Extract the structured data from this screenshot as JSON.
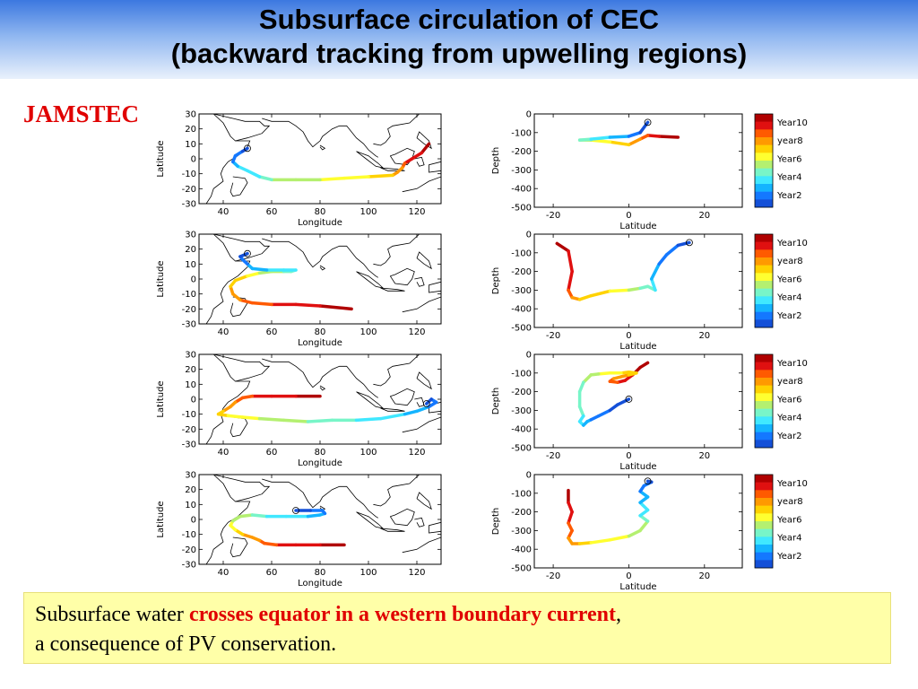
{
  "title": {
    "line1": "Subsurface circulation of CEC",
    "line2": "(backward tracking from upwelling regions)"
  },
  "org": "JAMSTEC",
  "caption": {
    "part1": "Subsurface water ",
    "highlight": "crosses equator in a western boundary current",
    "part2": ",",
    "line2": "a consequence of PV conservation."
  },
  "colorbar": {
    "labels": [
      "Year10",
      "year8",
      "Year6",
      "Year4",
      "Year2"
    ],
    "colors": [
      "#b00000",
      "#e01010",
      "#ff5a00",
      "#ff9a00",
      "#ffd200",
      "#ffff30",
      "#b4f070",
      "#78f5c8",
      "#40e8ff",
      "#14b4ff",
      "#1478ff",
      "#1450d8"
    ]
  },
  "chart_data": [
    {
      "type": "line",
      "panel": "map",
      "row": 1,
      "xlabel": "Longitude",
      "ylabel": "Latitude",
      "xlim": [
        30,
        130
      ],
      "ylim": [
        -30,
        30
      ],
      "xticks": [
        40,
        60,
        80,
        100,
        120
      ],
      "yticks": [
        30,
        20,
        10,
        0,
        -10,
        -20,
        -30
      ],
      "x": [
        125,
        122,
        118,
        115,
        114,
        112,
        110,
        100,
        90,
        80,
        70,
        60,
        55,
        50,
        46,
        44,
        45,
        48,
        50
      ],
      "y": [
        10,
        4,
        0,
        -3,
        -6,
        -9,
        -11,
        -12,
        -13,
        -14,
        -14,
        -14,
        -12,
        -8,
        -5,
        -2,
        2,
        5,
        7
      ]
    },
    {
      "type": "line",
      "panel": "section",
      "row": 1,
      "xlabel": "Latitude",
      "ylabel": "Depth",
      "xlim": [
        -25,
        30
      ],
      "ylim": [
        -500,
        0
      ],
      "xticks": [
        -20,
        0,
        20
      ],
      "yticks": [
        0,
        -100,
        -200,
        -300,
        -400,
        -500
      ],
      "x": [
        13,
        8,
        5,
        3,
        0,
        -5,
        -10,
        -13,
        -10,
        -5,
        0,
        3,
        5
      ],
      "y": [
        -125,
        -120,
        -115,
        -135,
        -165,
        -150,
        -140,
        -140,
        -135,
        -125,
        -120,
        -100,
        -45
      ]
    },
    {
      "type": "line",
      "panel": "map",
      "row": 2,
      "xlabel": "Longitude",
      "ylabel": "Latitude",
      "xlim": [
        30,
        130
      ],
      "ylim": [
        -30,
        30
      ],
      "xticks": [
        40,
        60,
        80,
        100,
        120
      ],
      "yticks": [
        30,
        20,
        10,
        0,
        -10,
        -20,
        -30
      ],
      "x": [
        93,
        80,
        70,
        60,
        52,
        47,
        44,
        43,
        45,
        50,
        55,
        60,
        65,
        68,
        70,
        65,
        58,
        52,
        50,
        48,
        47,
        50
      ],
      "y": [
        -20,
        -18,
        -17,
        -17,
        -16,
        -14,
        -10,
        -5,
        -1,
        2,
        4,
        5,
        5,
        5,
        6,
        6,
        6,
        7,
        10,
        13,
        15,
        17
      ]
    },
    {
      "type": "line",
      "panel": "section",
      "row": 2,
      "xlabel": "Latitude",
      "ylabel": "Depth",
      "xlim": [
        -25,
        30
      ],
      "ylim": [
        -500,
        0
      ],
      "xticks": [
        -20,
        0,
        20
      ],
      "yticks": [
        0,
        -100,
        -200,
        -300,
        -400,
        -500
      ],
      "x": [
        -19,
        -16,
        -15,
        -16,
        -15,
        -13,
        -10,
        -5,
        0,
        3,
        5,
        7,
        6,
        8,
        10,
        13,
        16
      ],
      "y": [
        -50,
        -90,
        -200,
        -300,
        -340,
        -350,
        -330,
        -305,
        -300,
        -290,
        -280,
        -300,
        -240,
        -160,
        -110,
        -60,
        -45
      ]
    },
    {
      "type": "line",
      "panel": "map",
      "row": 3,
      "xlabel": "Longitude",
      "ylabel": "Latitude",
      "xlim": [
        30,
        130
      ],
      "ylim": [
        -30,
        30
      ],
      "xticks": [
        40,
        60,
        80,
        100,
        120
      ],
      "yticks": [
        30,
        20,
        10,
        0,
        -10,
        -20,
        -30
      ],
      "x": [
        80,
        70,
        60,
        52,
        48,
        45,
        43,
        40,
        38,
        42,
        48,
        55,
        65,
        75,
        85,
        95,
        105,
        115,
        120,
        125,
        128,
        126,
        124
      ],
      "y": [
        2,
        2,
        2,
        2,
        1,
        -2,
        -5,
        -8,
        -10,
        -11,
        -12,
        -13,
        -14,
        -15,
        -14,
        -14,
        -13,
        -10,
        -8,
        -5,
        -2,
        0,
        -3
      ]
    },
    {
      "type": "line",
      "panel": "section",
      "row": 3,
      "xlabel": "Latitude",
      "ylabel": "Depth",
      "xlim": [
        -25,
        30
      ],
      "ylim": [
        -500,
        0
      ],
      "xticks": [
        -20,
        0,
        20
      ],
      "yticks": [
        0,
        -100,
        -200,
        -300,
        -400,
        -500
      ],
      "x": [
        5,
        3,
        1,
        -1,
        -3,
        -5,
        -4,
        -2,
        0,
        2,
        0,
        -2,
        -5,
        -8,
        -10,
        -12,
        -13,
        -13,
        -12,
        -13,
        -12,
        -11,
        -10,
        -8,
        -5,
        -3,
        0
      ],
      "y": [
        -45,
        -70,
        -110,
        -140,
        -150,
        -145,
        -130,
        -120,
        -110,
        -100,
        -95,
        -100,
        -100,
        -105,
        -110,
        -150,
        -200,
        -280,
        -330,
        -360,
        -380,
        -360,
        -350,
        -330,
        -300,
        -270,
        -240
      ]
    },
    {
      "type": "line",
      "panel": "map",
      "row": 4,
      "xlabel": "Longitude",
      "ylabel": "Latitude",
      "xlim": [
        30,
        130
      ],
      "ylim": [
        -30,
        30
      ],
      "xticks": [
        40,
        60,
        80,
        100,
        120
      ],
      "yticks": [
        30,
        20,
        10,
        0,
        -10,
        -20,
        -30
      ],
      "x": [
        90,
        80,
        70,
        62,
        57,
        55,
        52,
        48,
        45,
        43,
        44,
        47,
        52,
        58,
        66,
        75,
        80,
        82,
        81,
        76,
        70
      ],
      "y": [
        -17,
        -17,
        -17,
        -17,
        -16,
        -14,
        -12,
        -10,
        -7,
        -4,
        -1,
        2,
        3,
        2,
        2,
        2,
        3,
        4,
        6,
        6,
        6
      ]
    },
    {
      "type": "line",
      "panel": "section",
      "row": 4,
      "xlabel": "Latitude",
      "ylabel": "Depth",
      "xlim": [
        -25,
        30
      ],
      "ylim": [
        -500,
        0
      ],
      "xticks": [
        -20,
        0,
        20
      ],
      "yticks": [
        0,
        -100,
        -200,
        -300,
        -400,
        -500
      ],
      "x": [
        -16,
        -16,
        -15,
        -16,
        -15,
        -16,
        -15,
        -13,
        -10,
        -5,
        0,
        3,
        5,
        3,
        5,
        3,
        5,
        3,
        4,
        6,
        5
      ],
      "y": [
        -85,
        -150,
        -200,
        -260,
        -300,
        -340,
        -370,
        -370,
        -365,
        -350,
        -330,
        -300,
        -250,
        -220,
        -190,
        -150,
        -120,
        -90,
        -60,
        -40,
        -35
      ]
    }
  ]
}
